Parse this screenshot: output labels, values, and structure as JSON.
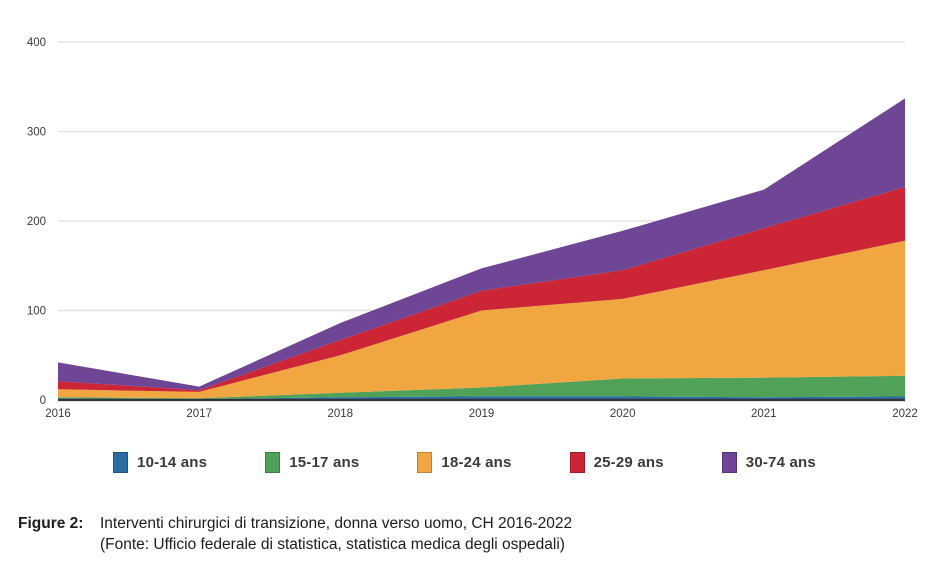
{
  "figure": {
    "caption_label": "Figure 2:",
    "caption_line1": "Interventi chirurgici di transizione, donna verso uomo, CH 2016-2022",
    "caption_line2": "(Fonte: Ufficio federale di statistica, statistica medica degli ospedali)"
  },
  "chart_data": {
    "type": "area",
    "stacked": true,
    "title": "",
    "xlabel": "",
    "ylabel": "",
    "x": [
      2016,
      2017,
      2018,
      2019,
      2020,
      2021,
      2022
    ],
    "series": [
      {
        "name": "10-14 ans",
        "color": "#2a6ba2",
        "values": [
          2,
          1,
          3,
          4,
          4,
          3,
          4
        ]
      },
      {
        "name": "15-17 ans",
        "color": "#52a158",
        "values": [
          1,
          1,
          5,
          10,
          20,
          22,
          23
        ]
      },
      {
        "name": "18-24 ans",
        "color": "#f0a742",
        "values": [
          9,
          7,
          42,
          86,
          89,
          120,
          151
        ]
      },
      {
        "name": "25-29 ans",
        "color": "#cc2636",
        "values": [
          9,
          2,
          17,
          22,
          32,
          47,
          60
        ]
      },
      {
        "name": "30-74 ans",
        "color": "#6f4596",
        "values": [
          21,
          4,
          19,
          25,
          44,
          43,
          99
        ]
      }
    ],
    "stack_totals": [
      42,
      15,
      86,
      147,
      189,
      235,
      337
    ],
    "ylim": [
      0,
      400
    ],
    "yticks": [
      0,
      100,
      200,
      300,
      400
    ],
    "grid": true,
    "gridline_color": "#e3e3e3",
    "axis_line_color": "#333333",
    "tick_label_color": "#3b3b3b",
    "legend_position": "bottom"
  }
}
